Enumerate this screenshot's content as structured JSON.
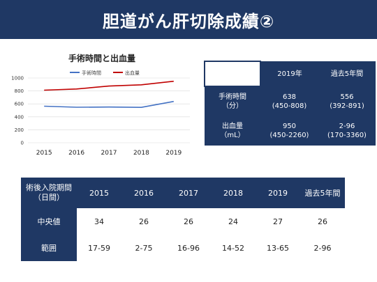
{
  "title": "胆道がん肝切除成績②",
  "chart_data": {
    "type": "line",
    "title": "手術時間と出血量",
    "x": [
      "2015",
      "2016",
      "2017",
      "2018",
      "2019"
    ],
    "ylim": [
      0,
      1000
    ],
    "yticks": [
      "0",
      "200",
      "400",
      "600",
      "800",
      "1000"
    ],
    "grid": true,
    "legend": "top",
    "series": [
      {
        "name": "手術時間",
        "color": "#4472c4",
        "values": [
          565,
          548,
          552,
          546,
          638
        ]
      },
      {
        "name": "出血量",
        "color": "#c00000",
        "values": [
          812,
          830,
          875,
          895,
          950
        ]
      }
    ]
  },
  "table1": {
    "headers": [
      "",
      "2019年",
      "過去5年間"
    ],
    "rows": [
      {
        "label": [
          "手術時間",
          "（分）"
        ],
        "c1": [
          "638",
          "(450-808)"
        ],
        "c2": [
          "556",
          "(392-891)"
        ]
      },
      {
        "label": [
          "出血量",
          "（mL）"
        ],
        "c1": [
          "950",
          "(450-2260)"
        ],
        "c2": [
          "2-96",
          "(170-3360)"
        ]
      }
    ]
  },
  "table2": {
    "corner": [
      "術後入院期間",
      "（日間）"
    ],
    "headers": [
      "2015",
      "2016",
      "2017",
      "2018",
      "2019",
      "過去5年間"
    ],
    "rows": [
      {
        "label": "中央値",
        "values": [
          "34",
          "26",
          "26",
          "24",
          "27",
          "26"
        ]
      },
      {
        "label": "範囲",
        "values": [
          "17-59",
          "2-75",
          "16-96",
          "14-52",
          "13-65",
          "2-96"
        ]
      }
    ]
  }
}
